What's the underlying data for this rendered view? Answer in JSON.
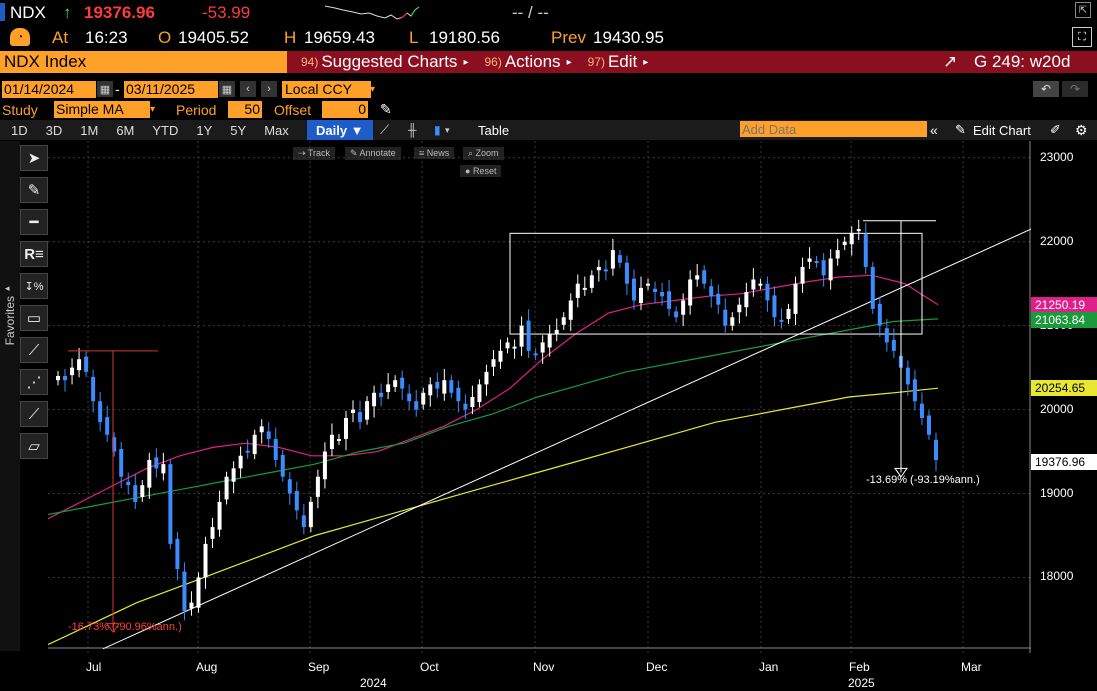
{
  "header": {
    "ticker": "NDX",
    "arrow": "↑",
    "last": "19376.96",
    "change": "-53.99",
    "bidask": "-- / --"
  },
  "quote": {
    "at_label": "At",
    "time": "16:23",
    "open_label": "O",
    "open": "19405.52",
    "high_label": "H",
    "high": "19659.43",
    "low_label": "L",
    "low": "19180.56",
    "prev_label": "Prev",
    "prev": "19430.95"
  },
  "menubar": {
    "security": "NDX Index",
    "suggested_num": "94)",
    "suggested": "Suggested Charts",
    "actions_num": "96)",
    "actions": "Actions",
    "edit_num": "97)",
    "edit": "Edit",
    "right": "G 249: w20d"
  },
  "range": {
    "start": "01/14/2024",
    "sep": "-",
    "end": "03/11/2025",
    "currency": "Local CCY"
  },
  "study": {
    "label": "Study",
    "value": "Simple MA",
    "period_label": "Period",
    "period": "50",
    "offset_label": "Offset",
    "offset": "0"
  },
  "toolbar": {
    "timeframes": [
      "1D",
      "3D",
      "1M",
      "6M",
      "YTD",
      "1Y",
      "5Y",
      "Max"
    ],
    "interval": "Daily ▼",
    "table": "Table",
    "add_data_placeholder": "Add Data",
    "edit_chart": "Edit Chart"
  },
  "chart_controls": {
    "track": "Track",
    "annotate": "Annotate",
    "news": "News",
    "zoom": "Zoom",
    "reset": "Reset"
  },
  "sidebar": {
    "favorites": "Favorites"
  },
  "chart_data": {
    "type": "candlestick",
    "y_ticks": [
      "23000",
      "22000",
      "21000",
      "20000",
      "19000",
      "18000"
    ],
    "ylim": [
      17100,
      23200
    ],
    "x_ticks": [
      "Jul",
      "Aug",
      "Sep",
      "Oct",
      "Nov",
      "Dec",
      "Jan",
      "Feb",
      "Mar"
    ],
    "x_years": [
      "2024",
      "2025"
    ],
    "price_labels": [
      {
        "value": "21250.19",
        "color": "#e0208a"
      },
      {
        "value": "21063.84",
        "color": "#1a9a3a"
      },
      {
        "value": "20254.65",
        "color": "#e8e832"
      },
      {
        "value": "19376.96",
        "color": "#ffffff"
      }
    ],
    "annotations": {
      "drawdown_1": "-13.69% (-93.19%ann.)",
      "drawdown_2": "-16.73% (-90.96%ann.)"
    },
    "candles_close": [
      20400,
      20350,
      20500,
      20600,
      20450,
      20100,
      19850,
      19700,
      19500,
      19200,
      19100,
      18900,
      19100,
      19400,
      19300,
      19350,
      18400,
      18100,
      17600,
      17700,
      18000,
      18400,
      18600,
      18900,
      19200,
      19300,
      19450,
      19500,
      19700,
      19800,
      19650,
      19400,
      19200,
      19000,
      18800,
      18600,
      18900,
      19200,
      19500,
      19700,
      19650,
      19900,
      20000,
      19850,
      20100,
      20200,
      20150,
      20300,
      20350,
      20250,
      20100,
      20000,
      20200,
      20300,
      20250,
      20350,
      20200,
      20100,
      20000,
      20150,
      20300,
      20450,
      20600,
      20700,
      20800,
      20750,
      21000,
      20700,
      20650,
      20800,
      20900,
      20950,
      21100,
      21300,
      21500,
      21450,
      21600,
      21700,
      21650,
      21900,
      21750,
      21500,
      21300,
      21450,
      21500,
      21400,
      21350,
      21200,
      21100,
      21300,
      21550,
      21600,
      21500,
      21350,
      21250,
      21000,
      21100,
      21250,
      21400,
      21550,
      21500,
      21300,
      21100,
      21050,
      21200,
      21500,
      21700,
      21800,
      21750,
      21600,
      21800,
      21900,
      22000,
      22100,
      22150,
      21700,
      21200,
      21000,
      20800,
      20700,
      20500,
      20300,
      20100,
      19900,
      19700,
      19400
    ],
    "ma_red": [
      18700,
      18900,
      19100,
      19300,
      19450,
      19550,
      19600,
      19550,
      19450,
      19450,
      19500,
      19650,
      19800,
      20000,
      20250,
      20600,
      20900,
      21150,
      21250,
      21300,
      21350,
      21380,
      21450,
      21520,
      21580,
      21600,
      21500,
      21250
    ],
    "ma_green": [
      18750,
      18850,
      18950,
      19050,
      19150,
      19250,
      19350,
      19500,
      19600,
      19800,
      19950,
      20150,
      20300,
      20450,
      20550,
      20650,
      20750,
      20850,
      20950,
      21050,
      21080
    ],
    "ma_yellow": [
      17200,
      17450,
      17700,
      17900,
      18100,
      18300,
      18500,
      18650,
      18800,
      18950,
      19100,
      19250,
      19400,
      19550,
      19700,
      19850,
      19950,
      20050,
      20150,
      20200,
      20254.65
    ],
    "trendline": [
      [
        0,
        17200
      ],
      [
        1,
        22200
      ]
    ]
  }
}
